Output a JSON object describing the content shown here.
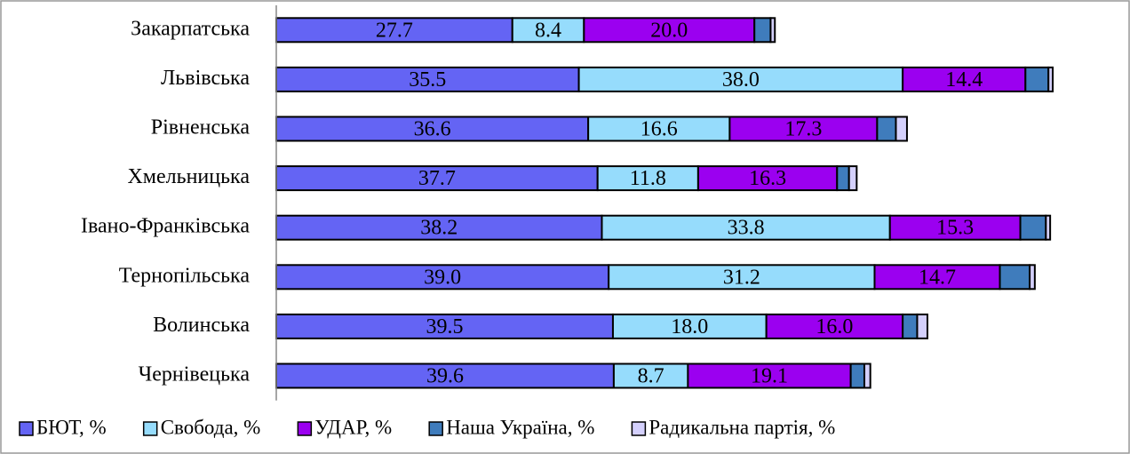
{
  "chart_data": {
    "type": "stacked-bar-horizontal",
    "categories": [
      "Закарпатська",
      "Львівська",
      "Рівненська",
      "Хмельницька",
      "Івано-Франківська",
      "Тернопільська",
      "Волинська",
      "Чернівецька"
    ],
    "series": [
      {
        "name": "БЮТ, %",
        "color": "#6464f4",
        "values": [
          27.7,
          35.5,
          36.6,
          37.7,
          38.2,
          39.0,
          39.5,
          39.6
        ],
        "value_labels": [
          "27.7",
          "35.5",
          "36.6",
          "37.7",
          "38.2",
          "39.0",
          "39.5",
          "39.6"
        ]
      },
      {
        "name": "Свобода, %",
        "color": "#96dcfc",
        "values": [
          8.4,
          38.0,
          16.6,
          11.8,
          33.8,
          31.2,
          18.0,
          8.7
        ],
        "value_labels": [
          "8.4",
          "38.0",
          "16.6",
          "11.8",
          "33.8",
          "31.2",
          "18.0",
          "8.7"
        ]
      },
      {
        "name": "УДАР, %",
        "color": "#9b00f0",
        "values": [
          20.0,
          14.4,
          17.3,
          16.3,
          15.3,
          14.7,
          16.0,
          19.1
        ],
        "value_labels": [
          "20.0",
          "14.4",
          "17.3",
          "16.3",
          "15.3",
          "14.7",
          "16.0",
          "19.1"
        ]
      },
      {
        "name": "Наша Україна, %",
        "color": "#3f7cbc",
        "values": [
          1.9,
          2.7,
          2.2,
          1.4,
          3.0,
          3.5,
          1.7,
          1.6
        ]
      },
      {
        "name": "Радикальна партія, %",
        "color": "#d4d0fc",
        "values": [
          0.5,
          0.5,
          1.3,
          0.9,
          0.5,
          0.6,
          1.2,
          0.7
        ]
      }
    ]
  }
}
